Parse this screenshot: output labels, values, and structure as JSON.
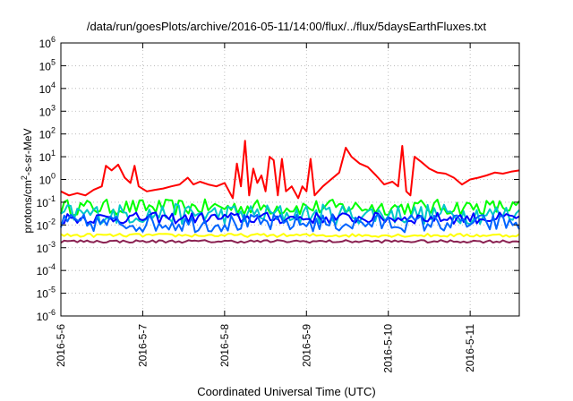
{
  "chart_data": {
    "type": "line",
    "title": "/data/run/goesPlots/archive/2016-05-11/14:00/flux/../flux/5daysEarthFluxes.txt",
    "xlabel": "Coordinated Universal Time (UTC)",
    "ylabel_main": "protons/cm",
    "ylabel_sup": "2",
    "ylabel_rest": "-s-sr-MeV",
    "y_scale": "log",
    "ylim": [
      1e-06,
      1000000.0
    ],
    "xlim": [
      0,
      5.6
    ],
    "x_tick_labels": [
      "2016-5-6",
      "2016-5-7",
      "2016-5-8",
      "2016-5-9",
      "2016-5-10",
      "2016-5-11"
    ],
    "x_ticks": [
      0,
      1,
      2,
      3,
      4,
      5
    ],
    "y_ticks": [
      -6,
      -5,
      -4,
      -3,
      -2,
      -1,
      0,
      1,
      2,
      3,
      4,
      5,
      6
    ],
    "y_tick_base": "10",
    "grid": true,
    "series": [
      {
        "color": "#ff0000",
        "points": [
          [
            0.0,
            0.3
          ],
          [
            0.1,
            0.2
          ],
          [
            0.2,
            0.25
          ],
          [
            0.3,
            0.2
          ],
          [
            0.4,
            0.35
          ],
          [
            0.5,
            0.5
          ],
          [
            0.55,
            4.0
          ],
          [
            0.62,
            2.5
          ],
          [
            0.7,
            4.5
          ],
          [
            0.78,
            1.2
          ],
          [
            0.85,
            0.7
          ],
          [
            0.9,
            4.0
          ],
          [
            0.95,
            0.5
          ],
          [
            1.05,
            0.3
          ],
          [
            1.15,
            0.35
          ],
          [
            1.25,
            0.4
          ],
          [
            1.35,
            0.5
          ],
          [
            1.45,
            0.6
          ],
          [
            1.55,
            1.2
          ],
          [
            1.62,
            0.6
          ],
          [
            1.7,
            0.8
          ],
          [
            1.8,
            0.6
          ],
          [
            1.9,
            0.5
          ],
          [
            2.0,
            0.7
          ],
          [
            2.1,
            0.15
          ],
          [
            2.15,
            5.0
          ],
          [
            2.2,
            0.5
          ],
          [
            2.25,
            50.0
          ],
          [
            2.3,
            0.2
          ],
          [
            2.35,
            3.0
          ],
          [
            2.4,
            0.7
          ],
          [
            2.45,
            1.5
          ],
          [
            2.5,
            0.3
          ],
          [
            2.55,
            10.0
          ],
          [
            2.6,
            7.0
          ],
          [
            2.65,
            0.2
          ],
          [
            2.7,
            8.0
          ],
          [
            2.75,
            0.3
          ],
          [
            2.82,
            0.5
          ],
          [
            2.9,
            0.15
          ],
          [
            2.95,
            0.5
          ],
          [
            3.0,
            0.3
          ],
          [
            3.05,
            8.0
          ],
          [
            3.1,
            0.2
          ],
          [
            3.2,
            0.5
          ],
          [
            3.3,
            1.0
          ],
          [
            3.4,
            2.0
          ],
          [
            3.48,
            25.0
          ],
          [
            3.55,
            10.0
          ],
          [
            3.65,
            5.0
          ],
          [
            3.75,
            3.5
          ],
          [
            3.85,
            1.5
          ],
          [
            3.95,
            0.6
          ],
          [
            4.05,
            0.8
          ],
          [
            4.12,
            0.5
          ],
          [
            4.17,
            30.0
          ],
          [
            4.22,
            0.3
          ],
          [
            4.27,
            0.2
          ],
          [
            4.32,
            10.0
          ],
          [
            4.4,
            6.0
          ],
          [
            4.5,
            3.0
          ],
          [
            4.6,
            2.0
          ],
          [
            4.7,
            1.8
          ],
          [
            4.8,
            1.2
          ],
          [
            4.9,
            0.6
          ],
          [
            5.0,
            1.0
          ],
          [
            5.1,
            1.2
          ],
          [
            5.2,
            1.5
          ],
          [
            5.3,
            2.0
          ],
          [
            5.4,
            1.8
          ],
          [
            5.5,
            2.2
          ],
          [
            5.6,
            2.5
          ]
        ]
      },
      {
        "color": "#00ff00",
        "points": [],
        "level": 0.06,
        "spread": 0.7
      },
      {
        "color": "#00c8c8",
        "points": [],
        "level": 0.03,
        "spread": 0.9
      },
      {
        "color": "#0000ff",
        "points": [],
        "level": 0.02,
        "spread": 0.5
      },
      {
        "color": "#0064ff",
        "points": [],
        "level": 0.012,
        "spread": 0.8
      },
      {
        "color": "#ffff00",
        "points": [],
        "level": 0.0035,
        "spread": 0.15
      },
      {
        "color": "#8b2252",
        "points": [],
        "level": 0.0019,
        "spread": 0.12
      }
    ]
  }
}
